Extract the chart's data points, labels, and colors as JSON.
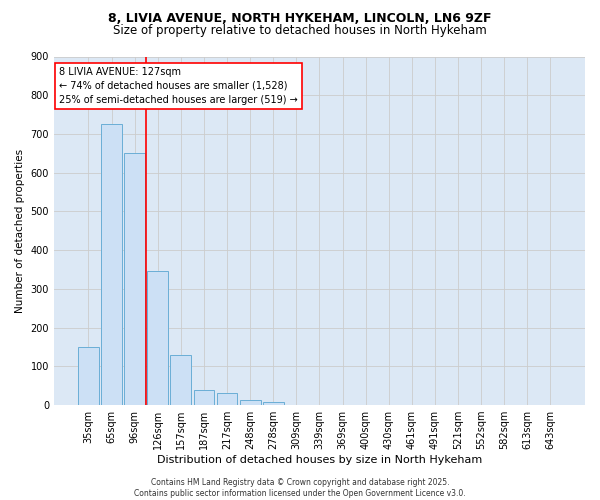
{
  "title1": "8, LIVIA AVENUE, NORTH HYKEHAM, LINCOLN, LN6 9ZF",
  "title2": "Size of property relative to detached houses in North Hykeham",
  "xlabel": "Distribution of detached houses by size in North Hykeham",
  "ylabel": "Number of detached properties",
  "categories": [
    "35sqm",
    "65sqm",
    "96sqm",
    "126sqm",
    "157sqm",
    "187sqm",
    "217sqm",
    "248sqm",
    "278sqm",
    "309sqm",
    "339sqm",
    "369sqm",
    "400sqm",
    "430sqm",
    "461sqm",
    "491sqm",
    "521sqm",
    "552sqm",
    "582sqm",
    "613sqm",
    "643sqm"
  ],
  "values": [
    150,
    725,
    650,
    345,
    130,
    40,
    30,
    12,
    8,
    0,
    0,
    0,
    0,
    0,
    0,
    0,
    0,
    0,
    0,
    0,
    0
  ],
  "bar_color": "#cce0f5",
  "bar_edge_color": "#6aaed6",
  "vline_x_idx": 3,
  "vline_color": "red",
  "annotation_line1": "8 LIVIA AVENUE: 127sqm",
  "annotation_line2": "← 74% of detached houses are smaller (1,528)",
  "annotation_line3": "25% of semi-detached houses are larger (519) →",
  "annotation_box_color": "white",
  "annotation_box_edge": "red",
  "ylim": [
    0,
    900
  ],
  "yticks": [
    0,
    100,
    200,
    300,
    400,
    500,
    600,
    700,
    800,
    900
  ],
  "grid_color": "#cccccc",
  "bg_color": "#dce8f5",
  "footer": "Contains HM Land Registry data © Crown copyright and database right 2025.\nContains public sector information licensed under the Open Government Licence v3.0.",
  "title1_fontsize": 9,
  "title2_fontsize": 8.5,
  "xlabel_fontsize": 8,
  "ylabel_fontsize": 7.5,
  "tick_fontsize": 7,
  "annot_fontsize": 7,
  "footer_fontsize": 5.5
}
